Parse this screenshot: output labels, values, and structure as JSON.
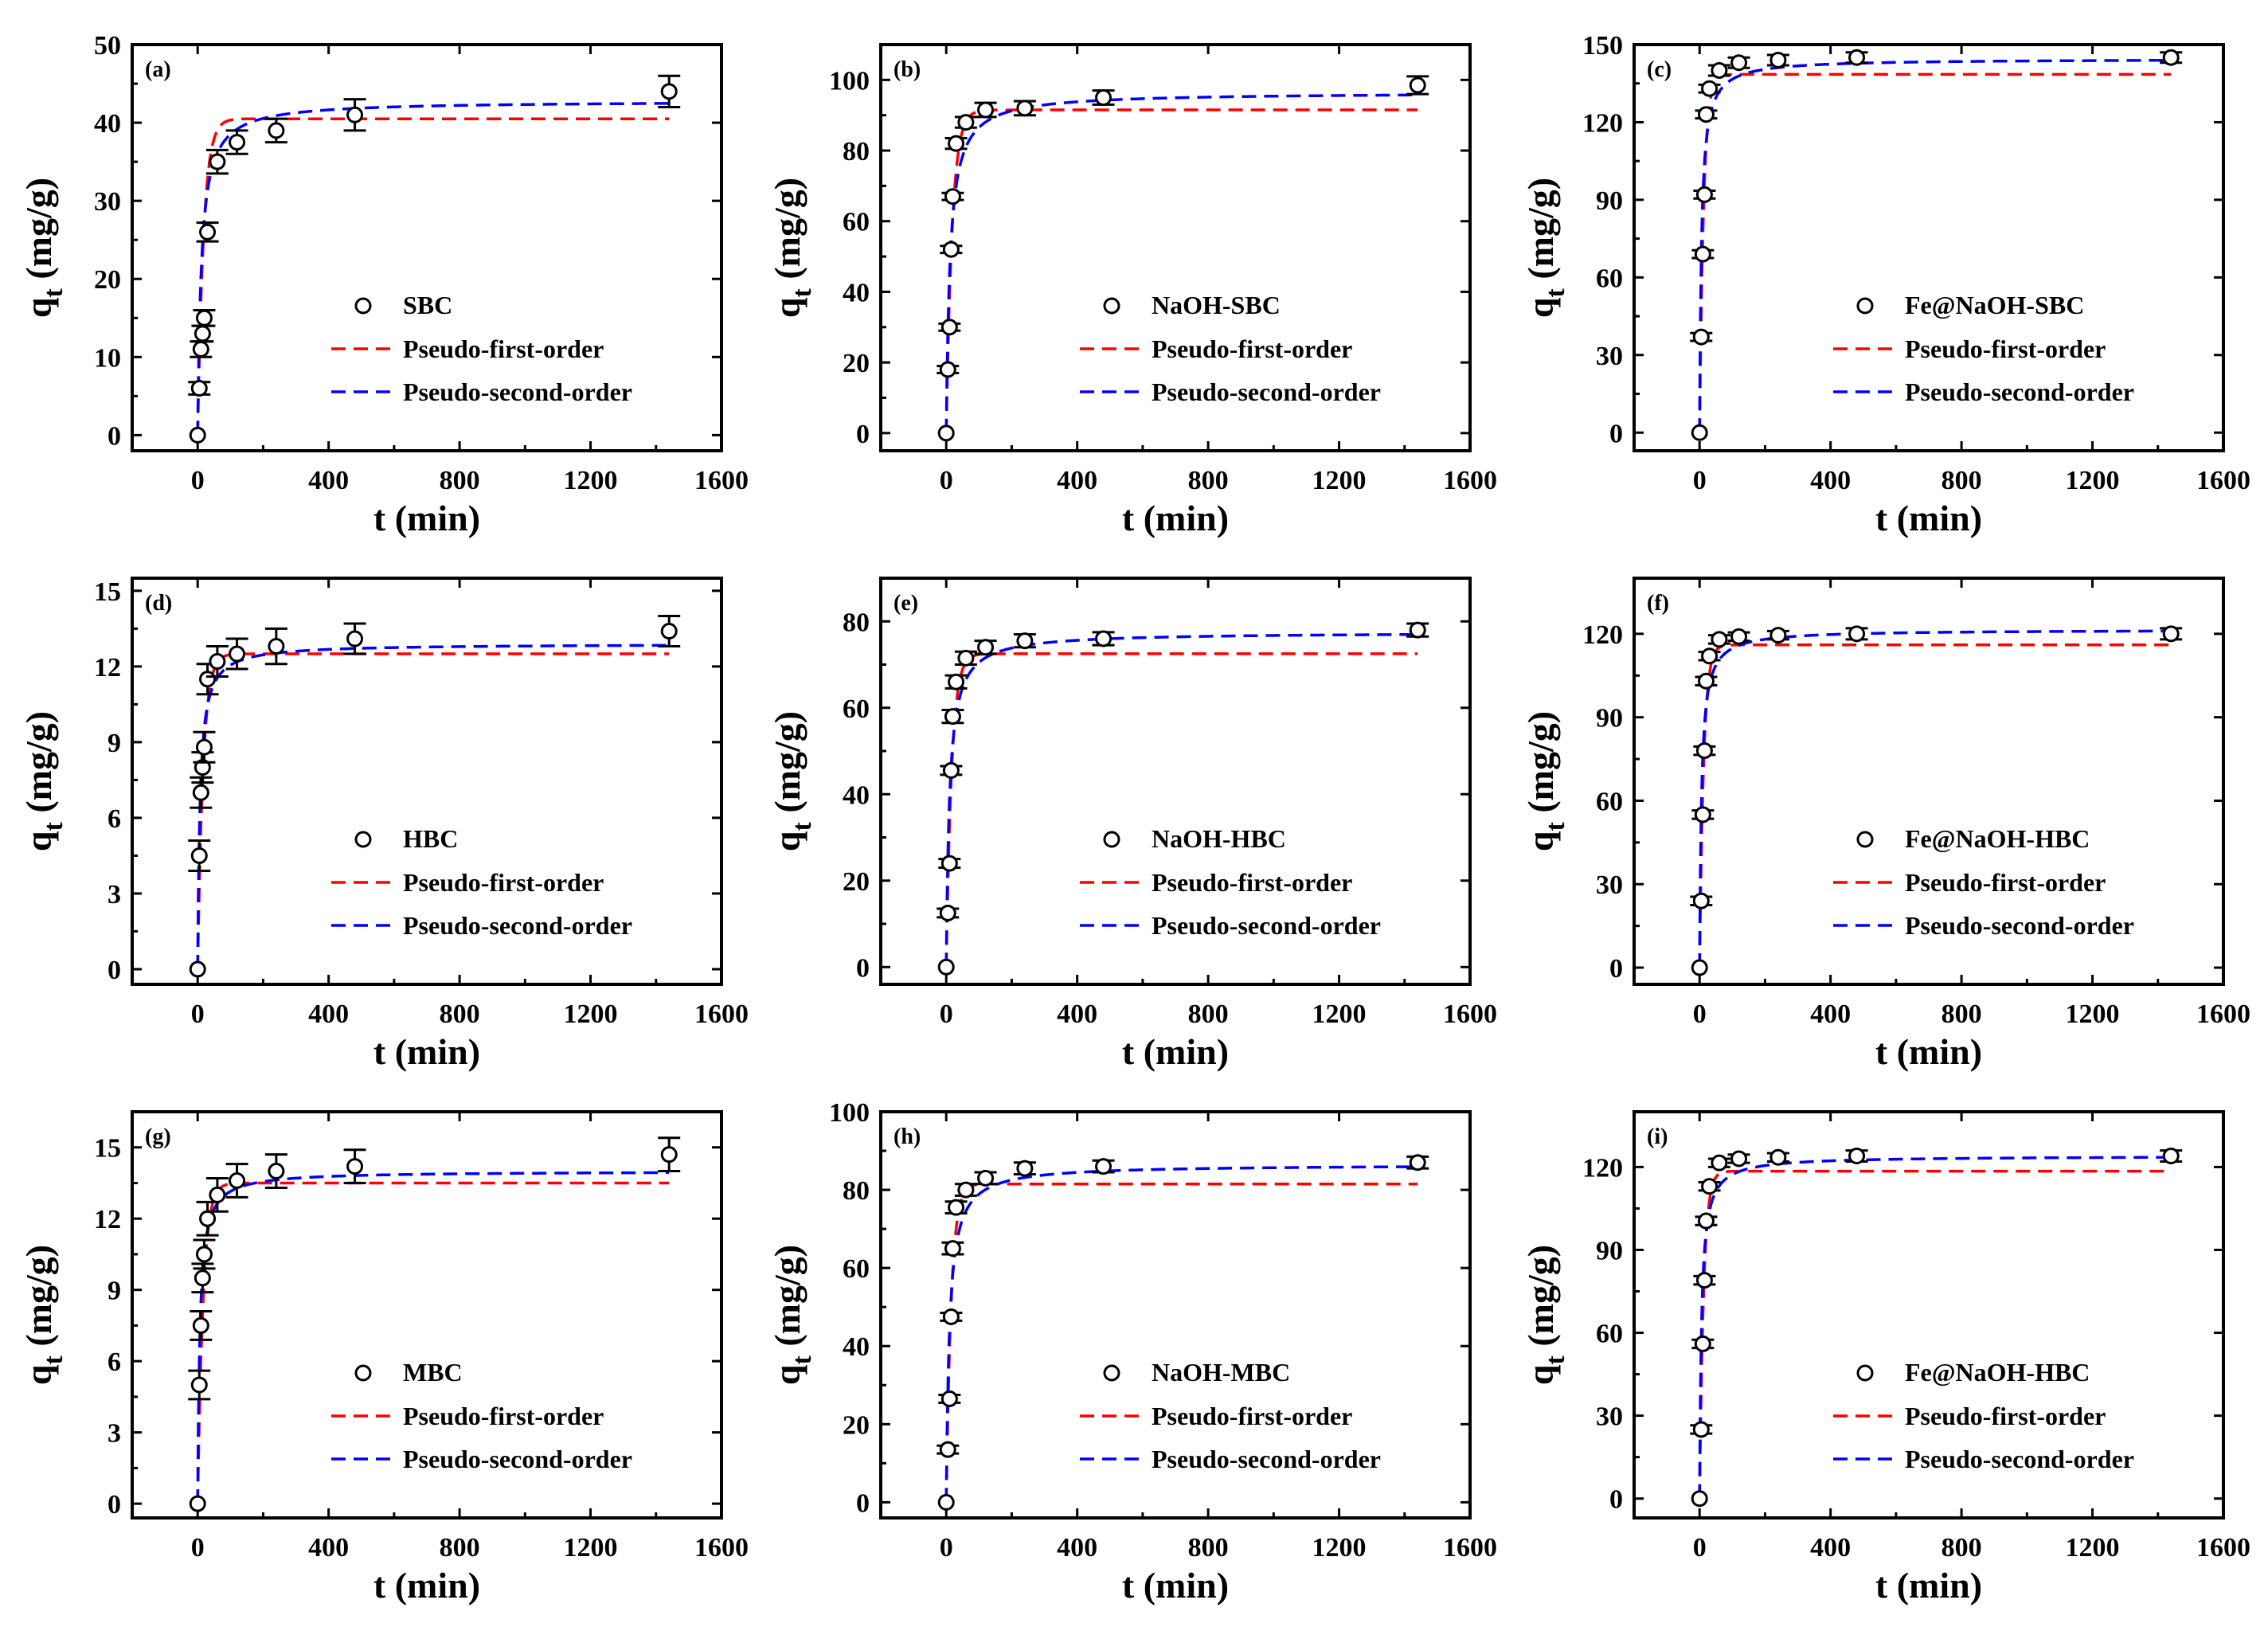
{
  "figure": {
    "xlabel": "t (min)",
    "ylabel_main": "q",
    "ylabel_sub": "t",
    "ylabel_unit": " (mg/g)"
  },
  "legend_labels": {
    "fit1": "Pseudo-first-order",
    "fit2": "Pseudo-second-order"
  },
  "colors": {
    "pfo": "#ff0000",
    "pso": "#0000ff",
    "data": "#000000"
  },
  "x_times": [
    0,
    5,
    10,
    15,
    20,
    30,
    60,
    120,
    240,
    480,
    1440
  ],
  "chart_data": [
    {
      "type": "scatter",
      "label": "(a)",
      "series_name": "SBC",
      "xlim": [
        -200,
        1600
      ],
      "xticks": [
        0,
        400,
        800,
        1200,
        1600
      ],
      "ylim": [
        -2,
        50
      ],
      "yticks": [
        0,
        10,
        20,
        30,
        40,
        50
      ],
      "x": [
        0,
        5,
        10,
        15,
        20,
        30,
        60,
        120,
        240,
        480,
        1440
      ],
      "y": [
        0,
        6,
        11,
        13,
        15,
        26,
        35,
        37.5,
        39,
        41,
        44
      ],
      "err": [
        0,
        0.8,
        1,
        1,
        1,
        1.2,
        1.5,
        1.5,
        1.5,
        2,
        2
      ],
      "pfo": {
        "qe": 40.5,
        "k": 0.055
      },
      "pso": {
        "qe": 42.8,
        "k": 0.0021
      },
      "legend_pos": "center-right"
    },
    {
      "type": "scatter",
      "label": "(b)",
      "series_name": "NaOH-SBC",
      "xlim": [
        -200,
        1600
      ],
      "xticks": [
        0,
        400,
        800,
        1200,
        1600
      ],
      "ylim": [
        -5,
        110
      ],
      "yticks": [
        0,
        20,
        40,
        60,
        80,
        100
      ],
      "x": [
        0,
        5,
        10,
        15,
        20,
        30,
        60,
        120,
        240,
        480,
        1440
      ],
      "y": [
        0,
        18,
        30,
        52,
        67,
        82,
        88,
        91.5,
        92,
        95,
        98.5
      ],
      "err": [
        0,
        1,
        1,
        1,
        1,
        1.5,
        1.5,
        2,
        2,
        2,
        2.5
      ],
      "pfo": {
        "qe": 91.5,
        "k": 0.055
      },
      "pso": {
        "qe": 96.5,
        "k": 0.0009
      },
      "legend_pos": "center-right"
    },
    {
      "type": "scatter",
      "label": "(c)",
      "series_name": "Fe@NaOH-SBC",
      "xlim": [
        -200,
        1600
      ],
      "xticks": [
        0,
        400,
        800,
        1200,
        1600
      ],
      "ylim": [
        -7,
        150
      ],
      "yticks": [
        0,
        30,
        60,
        90,
        120,
        150
      ],
      "x": [
        0,
        5,
        10,
        15,
        20,
        30,
        60,
        120,
        240,
        480,
        1440
      ],
      "y": [
        0,
        37,
        69,
        92,
        123,
        133,
        140,
        143,
        144,
        145,
        145
      ],
      "err": [
        0,
        1.5,
        1.5,
        1.5,
        1.5,
        1.5,
        2,
        2,
        2,
        2,
        2
      ],
      "pfo": {
        "qe": 138.5,
        "k": 0.08
      },
      "pso": {
        "qe": 144.5,
        "k": 0.0012
      },
      "legend_pos": "center-right"
    },
    {
      "type": "scatter",
      "label": "(d)",
      "series_name": "HBC",
      "xlim": [
        -200,
        1600
      ],
      "xticks": [
        0,
        400,
        800,
        1200,
        1600
      ],
      "ylim": [
        -0.6,
        15.5
      ],
      "yticks": [
        0,
        3,
        6,
        9,
        12,
        15
      ],
      "x": [
        0,
        5,
        10,
        15,
        20,
        30,
        60,
        120,
        240,
        480,
        1440
      ],
      "y": [
        0,
        4.5,
        7,
        8,
        8.8,
        11.5,
        12.2,
        12.5,
        12.8,
        13.1,
        13.4
      ],
      "err": [
        0,
        0.6,
        0.6,
        0.6,
        0.6,
        0.6,
        0.6,
        0.6,
        0.7,
        0.6,
        0.6
      ],
      "pfo": {
        "qe": 12.5,
        "k": 0.06
      },
      "pso": {
        "qe": 12.9,
        "k": 0.011
      },
      "legend_pos": "center-right"
    },
    {
      "type": "scatter",
      "label": "(e)",
      "series_name": "NaOH-HBC",
      "xlim": [
        -200,
        1600
      ],
      "xticks": [
        0,
        400,
        800,
        1200,
        1600
      ],
      "ylim": [
        -4,
        90
      ],
      "yticks": [
        0,
        20,
        40,
        60,
        80
      ],
      "x": [
        0,
        5,
        10,
        15,
        20,
        30,
        60,
        120,
        240,
        480,
        1440
      ],
      "y": [
        0,
        12.5,
        24,
        45.5,
        58,
        66,
        71.5,
        74,
        75.5,
        76,
        78
      ],
      "err": [
        0,
        1,
        1,
        1,
        1.5,
        1.5,
        1.5,
        1.5,
        1.5,
        1.5,
        1.5
      ],
      "pfo": {
        "qe": 72.5,
        "k": 0.06
      },
      "pso": {
        "qe": 77.5,
        "k": 0.0013
      },
      "legend_pos": "center-right"
    },
    {
      "type": "scatter",
      "label": "(f)",
      "series_name": "Fe@NaOH-HBC",
      "xlim": [
        -200,
        1600
      ],
      "xticks": [
        0,
        400,
        800,
        1200,
        1600
      ],
      "ylim": [
        -6,
        140
      ],
      "yticks": [
        0,
        30,
        60,
        90,
        120
      ],
      "x": [
        0,
        5,
        10,
        15,
        20,
        30,
        60,
        120,
        240,
        480,
        1440
      ],
      "y": [
        0,
        24,
        55,
        78,
        103,
        112,
        118,
        119,
        119.5,
        120,
        120
      ],
      "err": [
        0,
        1.5,
        1.5,
        1.5,
        1.5,
        1.5,
        1.5,
        1.5,
        1.5,
        2,
        2
      ],
      "pfo": {
        "qe": 116,
        "k": 0.08
      },
      "pso": {
        "qe": 121.5,
        "k": 0.0014
      },
      "legend_pos": "center-right"
    },
    {
      "type": "scatter",
      "label": "(g)",
      "series_name": "MBC",
      "xlim": [
        -200,
        1600
      ],
      "xticks": [
        0,
        400,
        800,
        1200,
        1600
      ],
      "ylim": [
        -0.6,
        16.5
      ],
      "yticks": [
        0,
        3,
        6,
        9,
        12,
        15
      ],
      "x": [
        0,
        5,
        10,
        15,
        20,
        30,
        60,
        120,
        240,
        480,
        1440
      ],
      "y": [
        0,
        5,
        7.5,
        9.5,
        10.5,
        12,
        13,
        13.6,
        14,
        14.2,
        14.7
      ],
      "err": [
        0,
        0.6,
        0.6,
        0.6,
        0.6,
        0.7,
        0.7,
        0.7,
        0.7,
        0.7,
        0.7
      ],
      "pfo": {
        "qe": 13.5,
        "k": 0.06
      },
      "pso": {
        "qe": 14.0,
        "k": 0.011
      },
      "legend_pos": "center-right"
    },
    {
      "type": "scatter",
      "label": "(h)",
      "series_name": "NaOH-MBC",
      "xlim": [
        -200,
        1600
      ],
      "xticks": [
        0,
        400,
        800,
        1200,
        1600
      ],
      "ylim": [
        -4,
        100
      ],
      "yticks": [
        0,
        20,
        40,
        60,
        80,
        100
      ],
      "x": [
        0,
        5,
        10,
        15,
        20,
        30,
        60,
        120,
        240,
        480,
        1440
      ],
      "y": [
        0,
        13.5,
        26.5,
        47.5,
        65,
        75.5,
        80,
        83,
        85.5,
        86,
        87
      ],
      "err": [
        0,
        1,
        1,
        1,
        1.5,
        1.5,
        1.5,
        1.5,
        1.5,
        1.5,
        1.5
      ],
      "pfo": {
        "qe": 81.5,
        "k": 0.065
      },
      "pso": {
        "qe": 86.5,
        "k": 0.0012
      },
      "legend_pos": "center-right"
    },
    {
      "type": "scatter",
      "label": "(i)",
      "series_name": "Fe@NaOH-HBC",
      "xlim": [
        -200,
        1600
      ],
      "xticks": [
        0,
        400,
        800,
        1200,
        1600
      ],
      "ylim": [
        -7,
        140
      ],
      "yticks": [
        0,
        30,
        60,
        90,
        120
      ],
      "x": [
        0,
        5,
        10,
        15,
        20,
        30,
        60,
        120,
        240,
        480,
        1440
      ],
      "y": [
        0,
        25,
        56,
        79,
        100.5,
        113,
        121.5,
        123,
        123.5,
        124,
        124
      ],
      "err": [
        0,
        1.5,
        1.5,
        1.5,
        1.5,
        1.5,
        1.5,
        1.5,
        1.5,
        2,
        2
      ],
      "pfo": {
        "qe": 118.5,
        "k": 0.08
      },
      "pso": {
        "qe": 124,
        "k": 0.0014
      },
      "legend_pos": "center-right"
    }
  ]
}
